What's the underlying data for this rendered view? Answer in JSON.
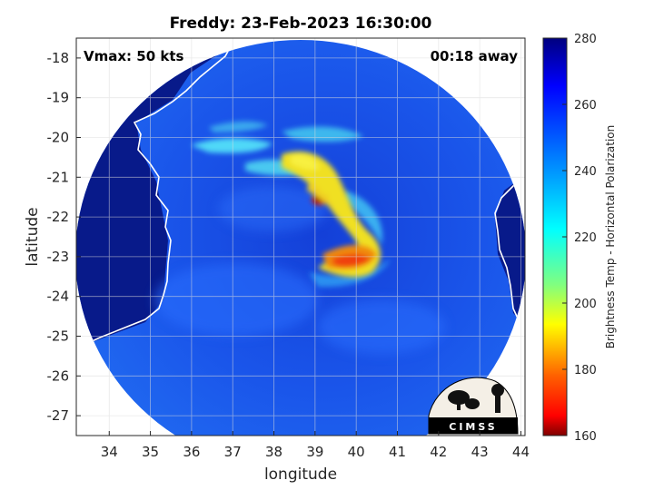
{
  "title": "Freddy: 23-Feb-2023 16:30:00",
  "vmax_label": "Vmax: 50 kts",
  "time_label": "00:18 away",
  "xlabel": "longitude",
  "ylabel": "latitude",
  "colorbar_label": "Brightness Temp - Horizontal Polarization",
  "logo_text": "CIMSS",
  "x_ticks": [
    "34",
    "35",
    "36",
    "37",
    "38",
    "39",
    "40",
    "41",
    "42",
    "43",
    "44"
  ],
  "y_ticks": [
    "-18",
    "-19",
    "-20",
    "-21",
    "-22",
    "-23",
    "-24",
    "-25",
    "-26",
    "-27"
  ],
  "colorbar_ticks": [
    "280",
    "260",
    "240",
    "220",
    "200",
    "180",
    "160"
  ],
  "colors": {
    "deep_blue": "#0a1a8c",
    "scene_blue": "#1a52e8",
    "cyan": "#40d0f0",
    "yellow": "#f0e020",
    "orange": "#f08010",
    "red": "#e01010",
    "coast": "#ffffff"
  },
  "chart_data": {
    "type": "heatmap",
    "title": "Freddy: 23-Feb-2023 16:30:00",
    "xlabel": "longitude",
    "ylabel": "latitude",
    "xlim": [
      33.2,
      44.1
    ],
    "ylim": [
      -27.5,
      -17.5
    ],
    "colorbar": {
      "label": "Brightness Temp - Horizontal Polarization",
      "range": [
        160,
        280
      ],
      "colormap": "jet"
    },
    "grid": true
  }
}
